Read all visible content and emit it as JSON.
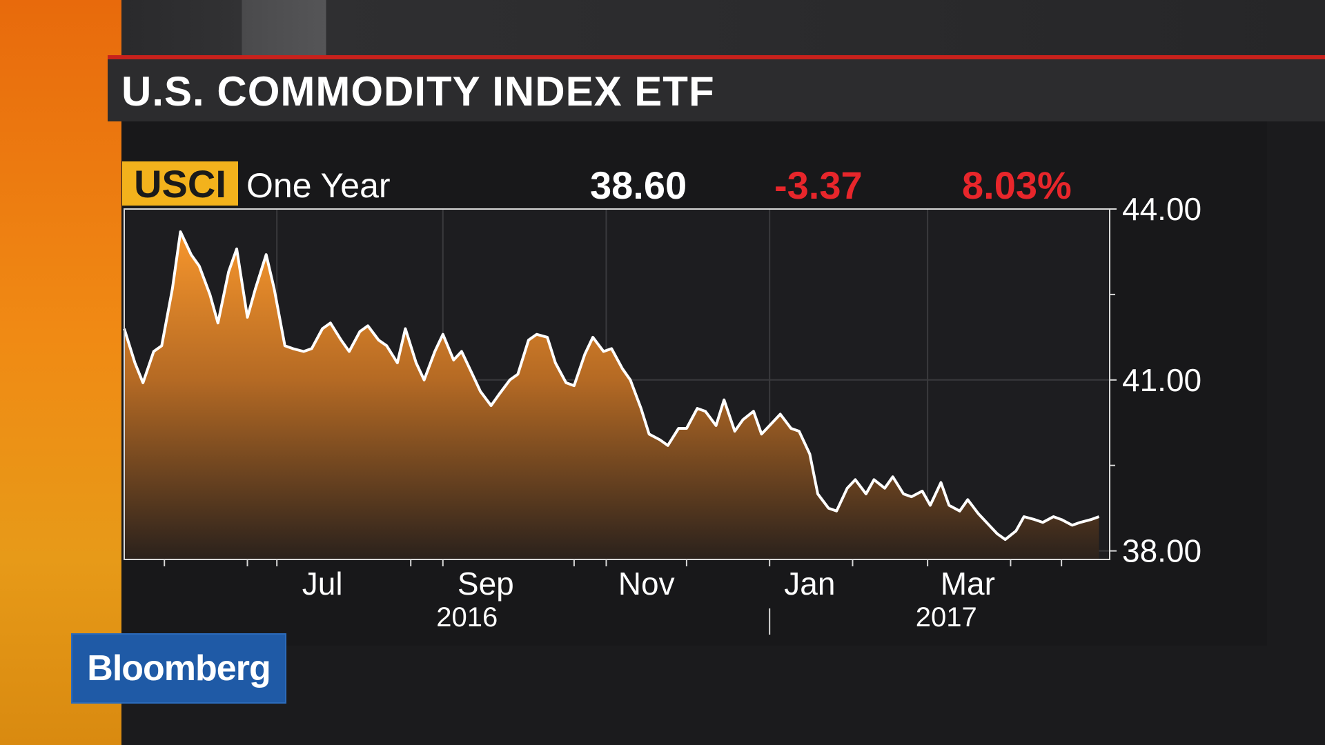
{
  "header": {
    "title": "U.S. COMMODITY INDEX ETF"
  },
  "quote": {
    "ticker": "USCI",
    "period": "One Year",
    "last": "38.60",
    "change": "-3.37",
    "change_pct": "8.03%"
  },
  "colors": {
    "accent": "#f3b21c",
    "negative": "#e8262b",
    "area_top": "#f5922a",
    "line": "#ffffff",
    "brand": "#1f5aa6"
  },
  "brand": {
    "logo_text": "Bloomberg"
  },
  "chart_data": {
    "type": "area",
    "title": "",
    "xlabel": "",
    "ylabel": "",
    "ylim": [
      37.85,
      44.0
    ],
    "y_ticks": [
      "44.00",
      "41.00",
      "38.00"
    ],
    "month_labels": [
      "Jul",
      "Sep",
      "Nov",
      "Jan",
      "Mar"
    ],
    "year_labels": [
      "2016",
      "2017"
    ],
    "grid": true,
    "series": [
      {
        "x": [
          "2016-05-05",
          "2016-05-09",
          "2016-05-12",
          "2016-05-16",
          "2016-05-19",
          "2016-05-23",
          "2016-05-26",
          "2016-05-30",
          "2016-06-02",
          "2016-06-06",
          "2016-06-09",
          "2016-06-13",
          "2016-06-16",
          "2016-06-20",
          "2016-06-23",
          "2016-06-27",
          "2016-06-30",
          "2016-07-04",
          "2016-07-07",
          "2016-07-11",
          "2016-07-14",
          "2016-07-18",
          "2016-07-21",
          "2016-07-25",
          "2016-07-28",
          "2016-08-01",
          "2016-08-04",
          "2016-08-08",
          "2016-08-11",
          "2016-08-15",
          "2016-08-18",
          "2016-08-22",
          "2016-08-25",
          "2016-08-29",
          "2016-09-01",
          "2016-09-05",
          "2016-09-08",
          "2016-09-12",
          "2016-09-15",
          "2016-09-19",
          "2016-09-22",
          "2016-09-26",
          "2016-09-29",
          "2016-10-03",
          "2016-10-06",
          "2016-10-10",
          "2016-10-13",
          "2016-10-17",
          "2016-10-20",
          "2016-10-24",
          "2016-10-27",
          "2016-10-31",
          "2016-11-03",
          "2016-11-07",
          "2016-11-10",
          "2016-11-14",
          "2016-11-17",
          "2016-11-21",
          "2016-11-24",
          "2016-11-28",
          "2016-12-01",
          "2016-12-05",
          "2016-12-08",
          "2016-12-12",
          "2016-12-15",
          "2016-12-19",
          "2016-12-22",
          "2016-12-26",
          "2016-12-29",
          "2017-01-02",
          "2017-01-05",
          "2017-01-09",
          "2017-01-12",
          "2017-01-16",
          "2017-01-19",
          "2017-01-23",
          "2017-01-26",
          "2017-01-30",
          "2017-02-02",
          "2017-02-06",
          "2017-02-09",
          "2017-02-13",
          "2017-02-16",
          "2017-02-20",
          "2017-02-23",
          "2017-02-27",
          "2017-03-02",
          "2017-03-06",
          "2017-03-09",
          "2017-03-13",
          "2017-03-16",
          "2017-03-20",
          "2017-03-23",
          "2017-03-27",
          "2017-03-30",
          "2017-04-03",
          "2017-04-06",
          "2017-04-10",
          "2017-04-13",
          "2017-04-17",
          "2017-04-20",
          "2017-04-24",
          "2017-04-27",
          "2017-05-01",
          "2017-05-04"
        ],
        "values": [
          41.9,
          41.3,
          40.95,
          41.5,
          41.6,
          42.6,
          43.6,
          43.2,
          43.0,
          42.5,
          42.0,
          42.9,
          43.3,
          42.1,
          42.6,
          43.2,
          42.6,
          41.6,
          41.55,
          41.5,
          41.55,
          41.9,
          42.0,
          41.7,
          41.5,
          41.85,
          41.95,
          41.7,
          41.6,
          41.3,
          41.9,
          41.3,
          41.0,
          41.5,
          41.8,
          41.35,
          41.5,
          41.1,
          40.8,
          40.55,
          40.75,
          41.0,
          41.1,
          41.7,
          41.8,
          41.75,
          41.3,
          40.95,
          40.9,
          41.45,
          41.75,
          41.5,
          41.55,
          41.2,
          41.0,
          40.5,
          40.05,
          39.95,
          39.85,
          40.15,
          40.15,
          40.5,
          40.45,
          40.2,
          40.65,
          40.1,
          40.3,
          40.45,
          40.05,
          40.25,
          40.4,
          40.15,
          40.1,
          39.7,
          39.0,
          38.75,
          38.7,
          39.1,
          39.25,
          39.0,
          39.25,
          39.1,
          39.3,
          39.0,
          38.95,
          39.05,
          38.8,
          39.2,
          38.8,
          38.7,
          38.9,
          38.65,
          38.5,
          38.3,
          38.2,
          38.35,
          38.6,
          38.55,
          38.5,
          38.6,
          38.55,
          38.45,
          38.5,
          38.55,
          38.6
        ]
      }
    ]
  }
}
